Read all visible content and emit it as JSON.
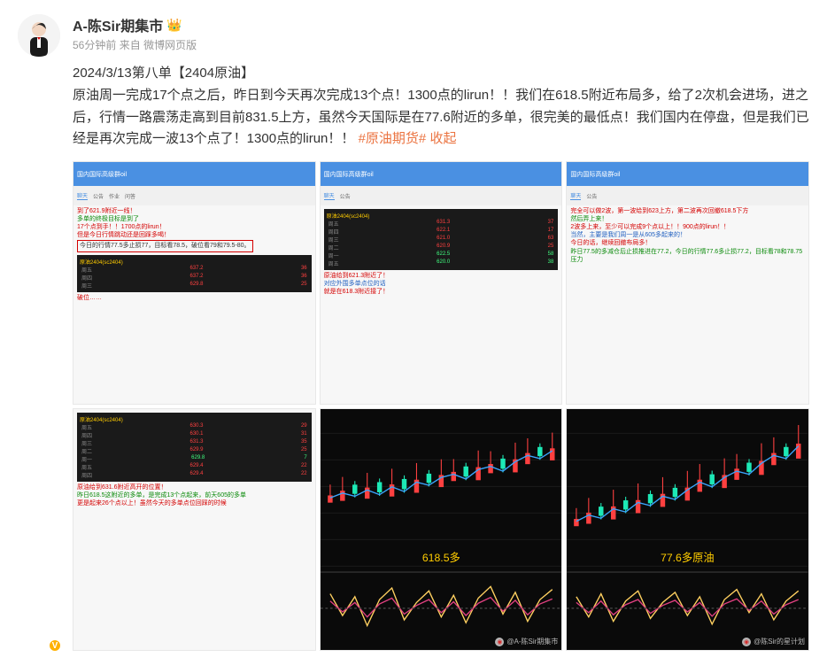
{
  "author": {
    "name": "A-陈Sir期集市",
    "has_crown": true,
    "verified": true
  },
  "meta": {
    "time": "56分钟前",
    "source_prefix": "来自",
    "source": "微博网页版"
  },
  "content": {
    "title_line": "2024/3/13第八单【2404原油】",
    "body": "原油周一完成17个点之后，昨日到今天再次完成13个点！1300点的lirun！！我们在618.5附近布局多，给了2次机会进场，进之后，行情一路震荡走高到目前831.5上方，虽然今天国际是在77.6附近的多单，很完美的最低点！我们国内在停盘，但是我们已经是再次完成一波13个点了！1300点的lirun！！",
    "hashtag": "#原油期货#",
    "collapse_label": "收起"
  },
  "colors": {
    "hashtag": "#eb7340",
    "ann_red": "#d40000",
    "ann_green": "#0a8a0a",
    "ann_blue": "#2060c0",
    "header_blue": "#4a90e2",
    "quote_bg": "#1a1a1a",
    "quote_yellow": "#ffcc00",
    "up": "#ff4040",
    "down": "#40ff80",
    "chart_bg": "#0a0a0a"
  },
  "thumbs": {
    "header_text": "国内国际高级群oil",
    "tabs": [
      "聊天",
      "公告",
      "作业",
      "问答"
    ],
    "t1": {
      "lines": [
        {
          "cls": "red",
          "txt": "到了621.9附近一线！"
        },
        {
          "cls": "green",
          "txt": "多单的终极目标是到了"
        },
        {
          "cls": "red",
          "txt": "17个点到手！！1700点的lirun！"
        },
        {
          "cls": "red",
          "txt": "但是今日行情跳动还是回踩多喝！"
        },
        {
          "cls": "boxed ann",
          "txt": "今日的行情77.5多止损77，目标看78.5，破位看79和79.5-80。"
        }
      ],
      "quote": {
        "title": "原油2404(sc2404)",
        "rows": [
          [
            "周五",
            "637.2",
            "36"
          ],
          [
            "周四",
            "637.2",
            "36"
          ],
          [
            "周三",
            "629.8",
            "25"
          ]
        ]
      },
      "tail": [
        {
          "cls": "red",
          "txt": "破位……"
        }
      ]
    },
    "t2": {
      "quote": {
        "title": "原油2404(sc2404)",
        "rows": [
          [
            "周五",
            "631.3",
            "37"
          ],
          [
            "周四",
            "622.1",
            "17"
          ],
          [
            "周三",
            "621.0",
            "63"
          ],
          [
            "周二",
            "620.9",
            "25"
          ],
          [
            "周一",
            "622.5",
            "58"
          ],
          [
            "周五",
            "620.0",
            "38"
          ]
        ]
      },
      "lines": [
        {
          "cls": "red",
          "txt": "原油给到621.3附近了！"
        },
        {
          "cls": "blue",
          "txt": "对应外围多单点位的话"
        },
        {
          "cls": "red",
          "txt": "就是在618.3附近接了！"
        }
      ]
    },
    "t3": {
      "lines": [
        {
          "cls": "red",
          "txt": "完全可以做2波，第一波给到623上方，第二波再次回撤618.5下方"
        },
        {
          "cls": "green",
          "txt": "然后弄上来！"
        },
        {
          "cls": "red",
          "txt": "2波多上来，至少可以完成9个点以上！！900点的lirun！！"
        },
        {
          "cls": "blue",
          "txt": "当然，主要是我们周一是从605多起来的！"
        },
        {
          "cls": "red",
          "txt": "今日的话，继续回撤布局多！"
        },
        {
          "cls": "green",
          "txt": "昨日77.5的多减仓后止损推进在77.2，今日的行情77.6多止损77.2，目标看78和78.75压力"
        }
      ]
    },
    "t4": {
      "quote": {
        "title": "原油2404(sc2404)",
        "rows": [
          [
            "周五",
            "630.3",
            "29"
          ],
          [
            "周四",
            "630.1",
            "31"
          ],
          [
            "周三",
            "631.3",
            "35"
          ],
          [
            "周二",
            "629.9",
            "25"
          ],
          [
            "周一",
            "629.8",
            "7"
          ],
          [
            "周五",
            "629.4",
            "22"
          ],
          [
            "周四",
            "629.4",
            "22"
          ]
        ]
      },
      "lines": [
        {
          "cls": "red",
          "txt": "原油给到631.6附近高开的位置！"
        },
        {
          "cls": "green",
          "txt": "昨日618.5这附近的多单，是完成13个点起来，前天605的多单"
        },
        {
          "cls": "red",
          "txt": "更是起来26个点以上！虽然今天的多单点位回踩的时候"
        }
      ]
    },
    "t5": {
      "chart_color": "#3aa6ff",
      "sub_color": "#ffd060",
      "label": "618.5多",
      "wm": "@A-陈Sir期集市",
      "series": {
        "line": [
          45,
          48,
          46,
          50,
          47,
          52,
          49,
          55,
          53,
          58,
          60,
          57,
          63,
          65,
          62,
          68,
          72,
          70,
          75
        ],
        "osc": [
          10,
          -5,
          8,
          -12,
          6,
          14,
          -8,
          4,
          12,
          -6,
          9,
          -10,
          7,
          15,
          -4,
          11,
          -9,
          6,
          13
        ]
      }
    },
    "t6": {
      "chart_color": "#3aa6ff",
      "sub_color": "#ffd060",
      "label": "77.6多原油",
      "wm": "@陈Sir的星计划",
      "series": {
        "line": [
          30,
          34,
          32,
          38,
          36,
          42,
          40,
          46,
          44,
          50,
          55,
          52,
          58,
          62,
          60,
          67,
          72,
          70,
          78
        ],
        "osc": [
          8,
          -6,
          10,
          -9,
          5,
          12,
          -7,
          4,
          11,
          -5,
          8,
          -11,
          6,
          13,
          -3,
          10,
          -8,
          5,
          12
        ]
      }
    }
  }
}
